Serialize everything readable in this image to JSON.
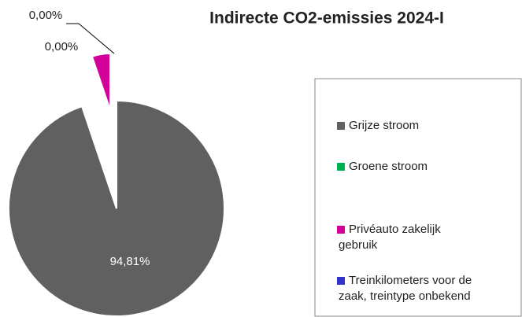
{
  "chart_data": {
    "type": "pie",
    "title": "Indirecte CO2-emissies 2024-I",
    "categories": [
      "Grijze stroom",
      "Groene stroom",
      "Privéauto zakelijk gebruik",
      "Treinkilometers voor de zaak, treintype onbekend"
    ],
    "values": [
      94.81,
      0.0,
      5.19,
      0.0
    ],
    "value_labels": [
      "94,81%",
      "0,00%",
      null,
      "0,00%"
    ],
    "colors": [
      "#606060",
      "#00b050",
      "#d4009a",
      "#3333cc"
    ],
    "exploded": [
      false,
      false,
      true,
      false
    ],
    "legend": "right"
  }
}
